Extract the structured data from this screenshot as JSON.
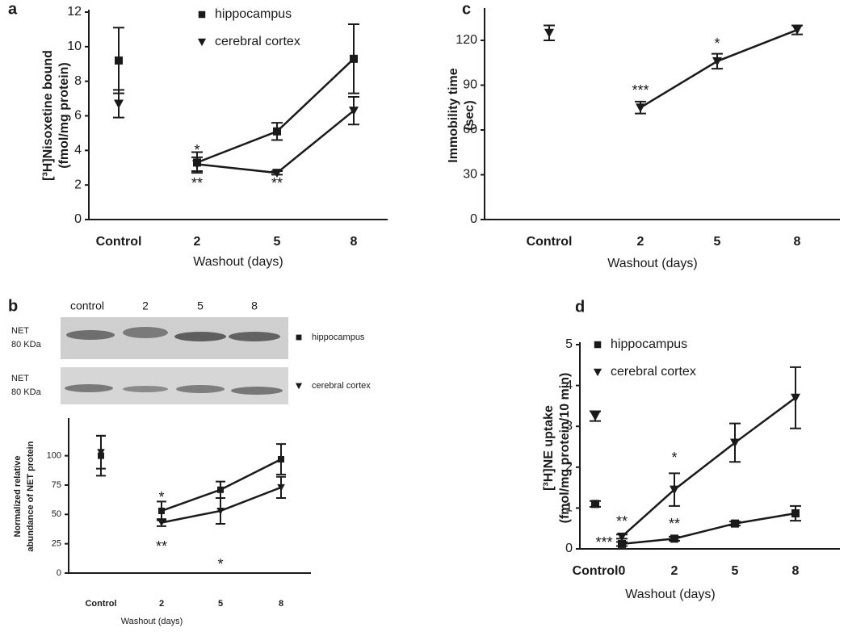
{
  "chart_data": [
    {
      "type": "line",
      "panel_label": "a",
      "categories": [
        "Control",
        "2",
        "5",
        "8"
      ],
      "x_label": "Washout (days)",
      "y_label": [
        "[³H]Nisoxetine bound",
        "(fmol/mg protein)"
      ],
      "ylim": [
        0,
        12
      ],
      "yticks": [
        0,
        2,
        4,
        6,
        8,
        10,
        12
      ],
      "series": [
        {
          "name": "hippocampus",
          "marker": "square",
          "color": "#1a1a1a",
          "values": [
            9.2,
            3.3,
            5.1,
            9.3
          ],
          "errors": [
            1.9,
            0.6,
            0.5,
            2.0
          ]
        },
        {
          "name": "cerebral cortex",
          "marker": "triangle-down",
          "color": "#1a1a1a",
          "values": [
            6.7,
            3.2,
            2.7,
            6.3
          ],
          "errors": [
            0.8,
            0.4,
            0.1,
            0.8
          ]
        }
      ],
      "annotations": [
        "*",
        "**",
        "**"
      ]
    },
    {
      "type": "line",
      "panel_label": "b",
      "blot": {
        "lanes": [
          "control",
          "2",
          "5",
          "8"
        ],
        "rows": [
          [
            "NET",
            "80 KDa"
          ],
          [
            "NET",
            "80 KDa"
          ]
        ]
      },
      "categories": [
        "Control",
        "2",
        "5",
        "8"
      ],
      "x_label": "Washout (days)",
      "y_label": [
        "Normalized relative",
        "abundance of NET protein"
      ],
      "ylim": [
        0,
        130
      ],
      "yticks": [
        0,
        25,
        50,
        75,
        100
      ],
      "series": [
        {
          "name": "hippocampus",
          "marker": "square",
          "color": "#1a1a1a",
          "values": [
            100,
            53,
            71,
            97
          ],
          "errors": [
            17,
            8,
            7,
            13
          ]
        },
        {
          "name": "cerebral cortex",
          "marker": "triangle-down",
          "color": "#1a1a1a",
          "values": [
            103,
            43,
            53,
            73
          ],
          "errors": [
            14,
            3,
            11,
            9
          ]
        }
      ],
      "annotations": [
        "*",
        "**",
        "*"
      ]
    },
    {
      "type": "line",
      "panel_label": "c",
      "categories": [
        "Control",
        "2",
        "5",
        "8"
      ],
      "x_label": "Washout (days)",
      "y_label": [
        "Immobility time",
        "(sec)"
      ],
      "ylim": [
        0,
        140
      ],
      "yticks": [
        0,
        30,
        60,
        90,
        120
      ],
      "series": [
        {
          "marker": "triangle-down",
          "color": "#1a1a1a",
          "values": [
            125,
            75,
            106,
            127
          ],
          "errors": [
            5,
            4,
            5,
            3
          ]
        }
      ],
      "annotations": [
        "***",
        "*"
      ]
    },
    {
      "type": "line",
      "panel_label": "d",
      "categories": [
        "Control",
        "0",
        "2",
        "5",
        "8"
      ],
      "x_label": "Washout (days)",
      "y_label": [
        "[³H]NE uptake",
        "(fmol/mg protein/10 min)"
      ],
      "ylim": [
        0,
        5
      ],
      "yticks": [
        0,
        1,
        2,
        3,
        4,
        5
      ],
      "series": [
        {
          "name": "hippocampus",
          "marker": "square",
          "color": "#1a1a1a",
          "values": [
            1.1,
            0.12,
            0.25,
            0.62,
            0.87
          ],
          "errors": [
            0.07,
            0.05,
            0.05,
            0.05,
            0.18
          ]
        },
        {
          "name": "cerebral cortex",
          "marker": "triangle-down",
          "color": "#1a1a1a",
          "values": [
            3.25,
            0.3,
            1.45,
            2.6,
            3.7
          ],
          "errors": [
            0.12,
            0.05,
            0.4,
            0.47,
            0.75
          ]
        }
      ],
      "annotations": [
        "***",
        "**",
        "*",
        "**"
      ]
    }
  ]
}
